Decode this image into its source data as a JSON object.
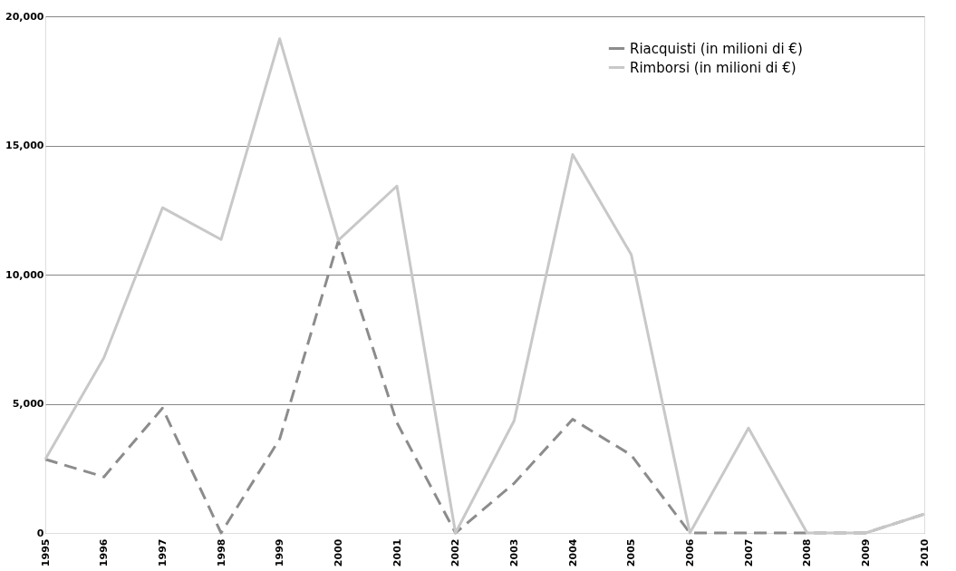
{
  "chart_data": {
    "type": "line",
    "categories": [
      "1995",
      "1996",
      "1997",
      "1998",
      "1999",
      "2000",
      "2001",
      "2002",
      "2003",
      "2004",
      "2005",
      "2006",
      "2007",
      "2008",
      "2009",
      "2010"
    ],
    "series": [
      {
        "name": "Riacquisti (in milioni di €)",
        "color": "#8c8c8c",
        "line_style": "dashed",
        "values": [
          2850,
          2170,
          4830,
          0,
          3640,
          11300,
          4270,
          0,
          1920,
          4400,
          3010,
          0,
          0,
          0,
          0,
          730
        ]
      },
      {
        "name": "Rimborsi (in milioni di €)",
        "color": "#c8c8c8",
        "line_style": "solid",
        "values": [
          2850,
          6780,
          12590,
          11360,
          19130,
          11330,
          13430,
          0,
          4340,
          14650,
          10770,
          0,
          4060,
          0,
          0,
          730
        ]
      }
    ],
    "ylim": [
      0,
      20000
    ],
    "yticks": [
      {
        "value": 0,
        "label": "0"
      },
      {
        "value": 5000,
        "label": "5,000"
      },
      {
        "value": 10000,
        "label": "10,000"
      },
      {
        "value": 15000,
        "label": "15,000"
      },
      {
        "value": 20000,
        "label": "20,000"
      }
    ],
    "grid": "y",
    "legend": "top right",
    "marker": "none"
  }
}
